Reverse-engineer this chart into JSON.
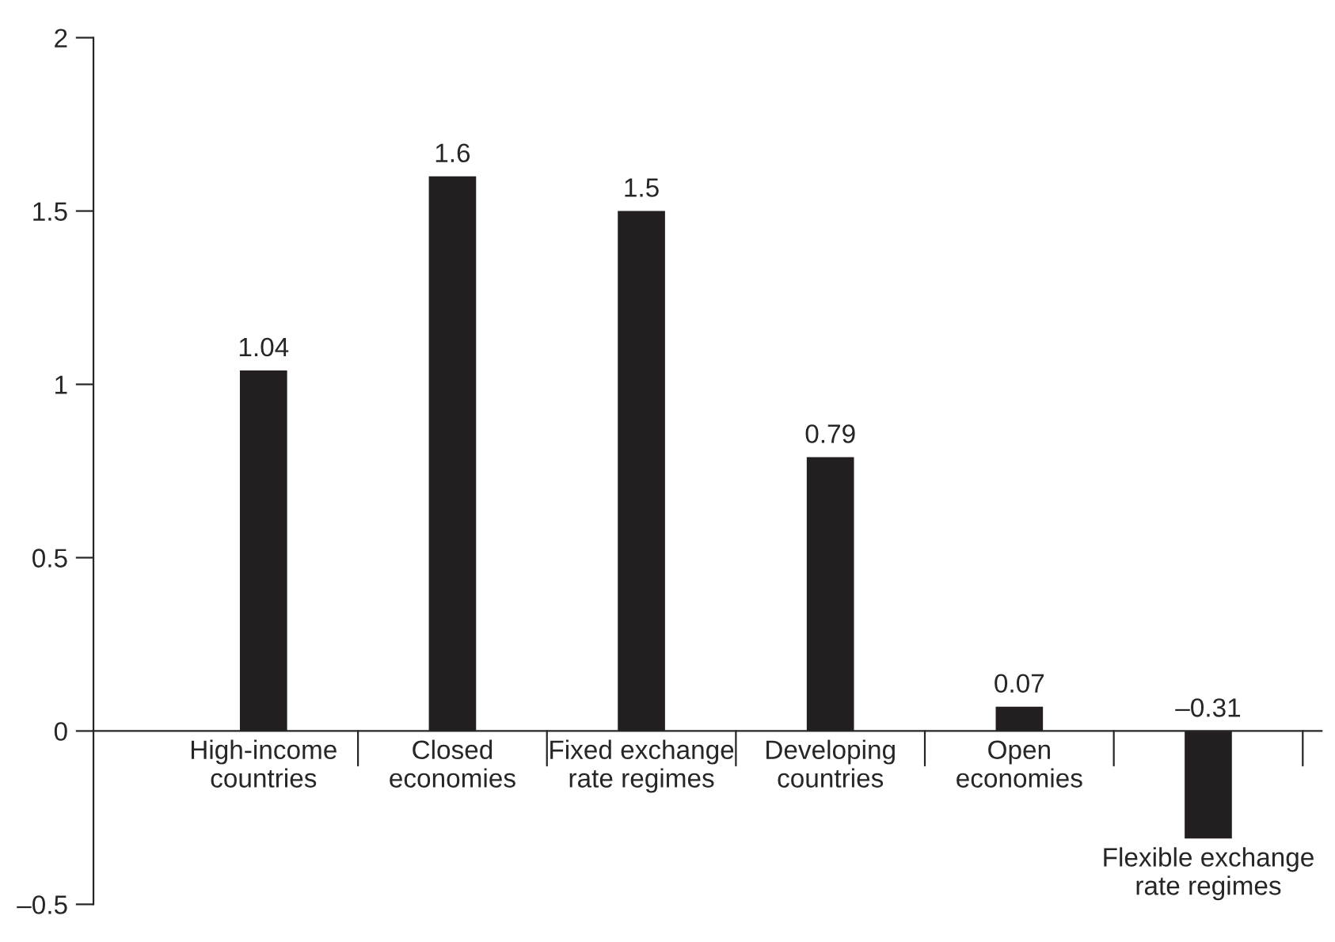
{
  "chart_data": {
    "type": "bar",
    "categories": [
      "High-income\ncountries",
      "Closed\neconomies",
      "Fixed exchange\nrate regimes",
      "Developing\ncountries",
      "Open\neconomies",
      "Flexible exchange\nrate regimes"
    ],
    "values": [
      1.04,
      1.6,
      1.5,
      0.79,
      0.07,
      -0.31
    ],
    "value_labels": [
      "1.04",
      "1.6",
      "1.5",
      "0.79",
      "0.07",
      "–0.31"
    ],
    "color": "#231f20",
    "ylim": [
      -0.5,
      2
    ],
    "yticks": [
      {
        "value": -0.5,
        "label": "–0.5"
      },
      0,
      0.5,
      1,
      1.5,
      2
    ],
    "grid": false
  }
}
